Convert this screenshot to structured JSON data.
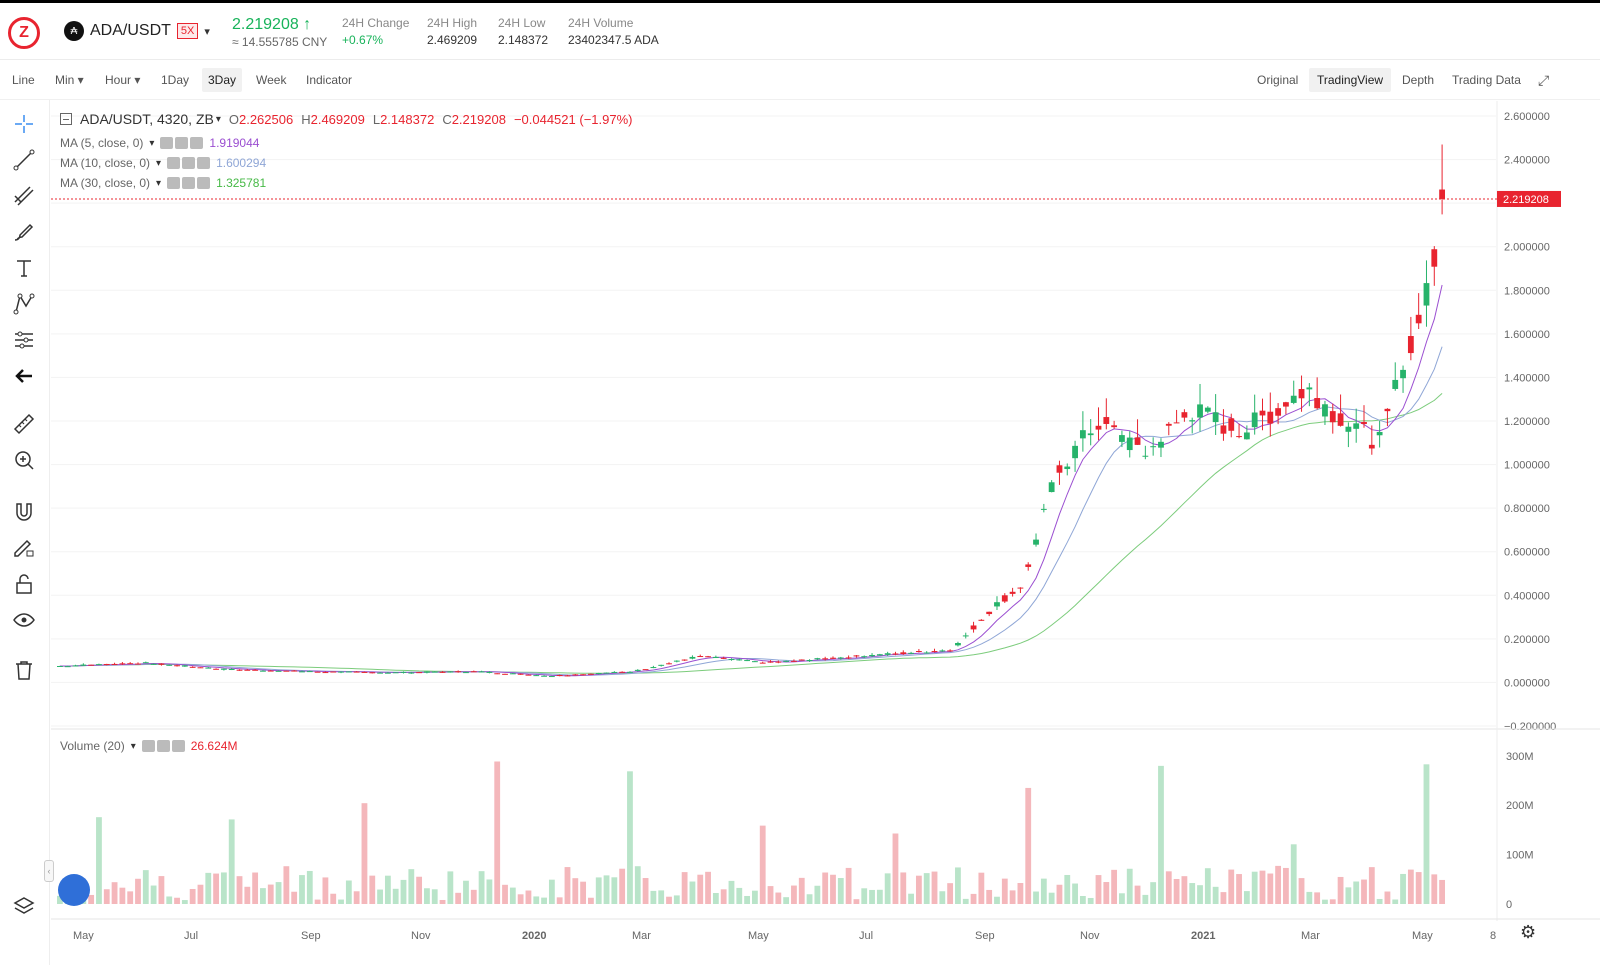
{
  "header": {
    "pair": "ADA/USDT",
    "leverage": "5X",
    "last_price": "2.219208 ↑",
    "cny_price": "≈ 14.555785 CNY",
    "stats": [
      {
        "label": "24H Change",
        "value": "+0.67%",
        "color": "#18b35a"
      },
      {
        "label": "24H High",
        "value": "2.469209"
      },
      {
        "label": "24H Low",
        "value": "2.148372"
      },
      {
        "label": "24H Volume",
        "value": "23402347.5 ADA"
      }
    ]
  },
  "toolbar": {
    "left_tabs": [
      "Line",
      "Min ▾",
      "Hour ▾",
      "1Day",
      "3Day",
      "Week",
      "Indicator"
    ],
    "active_tab": "3Day",
    "right_tabs": [
      "Original",
      "TradingView",
      "Depth",
      "Trading Data"
    ],
    "active_right": "TradingView"
  },
  "tools": [
    "crosshair-icon",
    "trend-line-icon",
    "fib-icon",
    "brush-icon",
    "text-icon",
    "pattern-icon",
    "measure-lines-icon",
    "back-arrow-icon",
    "ruler-icon",
    "zoom-in-icon",
    "magnet-icon",
    "lock-drawing-icon",
    "unlock-icon",
    "eye-icon",
    "trash-icon",
    "layers-icon"
  ],
  "legend": {
    "symbol": "ADA/USDT, 4320, ZB",
    "O": "2.262506",
    "H": "2.469209",
    "L": "2.148372",
    "C": "2.219208",
    "change": "−0.044521 (−1.97%)",
    "o_label": "O",
    "h_label": "H",
    "l_label": "L",
    "c_label": "C",
    "ma": [
      {
        "label": "MA (5, close, 0)",
        "value": "1.919044",
        "color": "#9b4fd1"
      },
      {
        "label": "MA (10, close, 0)",
        "value": "1.600294",
        "color": "#8fa6d6"
      },
      {
        "label": "MA (30, close, 0)",
        "value": "1.325781",
        "color": "#46b946"
      }
    ],
    "volume_label": "Volume (20)",
    "volume_value": "26.624M"
  },
  "colors": {
    "up": "#26b36a",
    "down": "#e8242f",
    "vol_up": "#b9e4c9",
    "vol_down": "#f4b7bb"
  },
  "chart_data": {
    "type": "candlestick",
    "price_axis": [
      "2.600000",
      "2.400000",
      "2.200000",
      "2.000000",
      "1.800000",
      "1.600000",
      "1.400000",
      "1.200000",
      "1.000000",
      "0.800000",
      "0.600000",
      "0.400000",
      "0.200000",
      "0.000000",
      "−0.200000"
    ],
    "ylim": [
      -0.2,
      2.6
    ],
    "volume_axis": [
      "300M",
      "200M",
      "100M",
      "0"
    ],
    "x_ticks": [
      "May",
      "Jul",
      "Sep",
      "Nov",
      "2020",
      "Mar",
      "May",
      "Jul",
      "Sep",
      "Nov",
      "2021",
      "Mar",
      "May",
      "8"
    ],
    "current_price_label": "2.219208",
    "current_price": 2.219208
  }
}
